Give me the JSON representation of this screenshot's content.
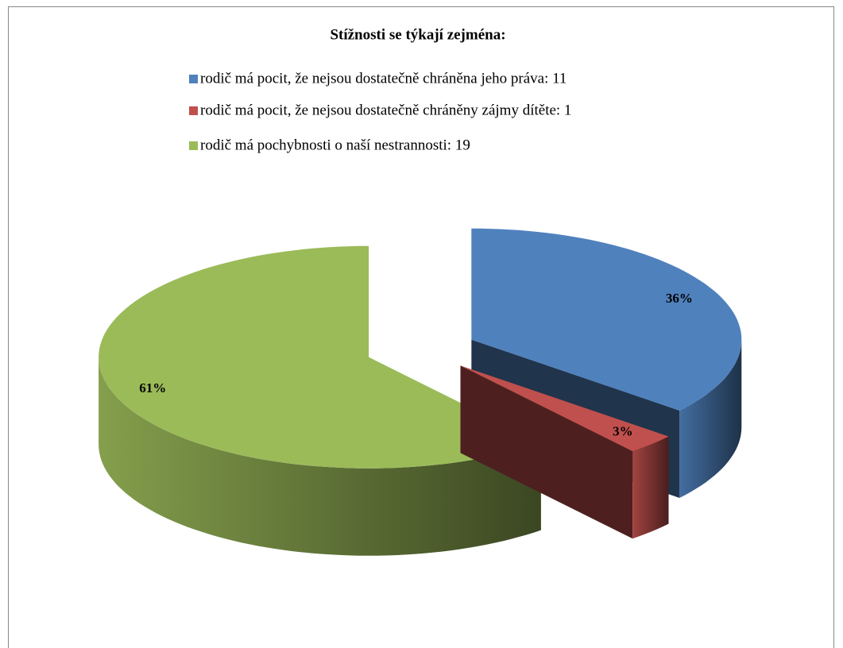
{
  "chart_data": {
    "type": "pie",
    "title": "Stížnosti se týkají zejména:",
    "labels": [
      "rodič má pocit, že nejsou dostatečně chráněna jeho práva: 11",
      "rodič má pocit, že nejsou dostatečně chráněny zájmy dítěte: 1",
      "rodič má pochybnosti o naší nestrannosti: 19"
    ],
    "values": [
      36,
      3,
      61
    ],
    "value_labels": [
      "36%",
      "3%",
      "61%"
    ],
    "colors": [
      "#4f81bd",
      "#c0504d",
      "#9bbb59"
    ],
    "legend": "top",
    "three_d": true,
    "exploded": true
  }
}
